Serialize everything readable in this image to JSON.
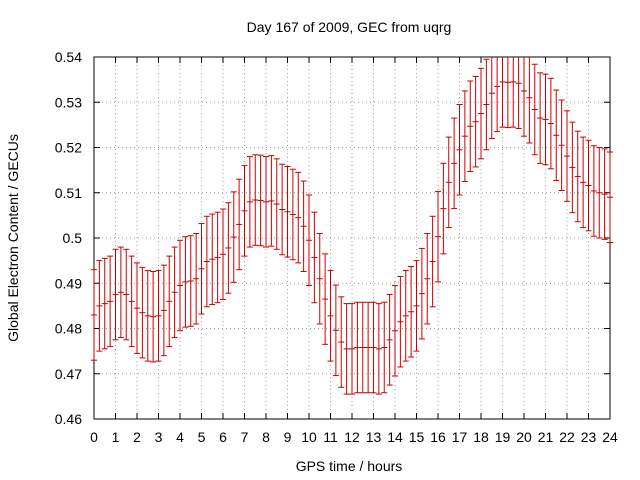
{
  "chart_data": {
    "type": "scatter",
    "title": "Day 167 of 2009, GEC from uqrg",
    "xlabel": "GPS time / hours",
    "ylabel": "Global Electron Content / GECUs",
    "xlim": [
      0,
      24
    ],
    "ylim": [
      0.46,
      0.54
    ],
    "xticks": [
      0,
      1,
      2,
      3,
      4,
      5,
      6,
      7,
      8,
      9,
      10,
      11,
      12,
      13,
      14,
      15,
      16,
      17,
      18,
      19,
      20,
      21,
      22,
      23,
      24
    ],
    "yticks": [
      0.46,
      0.47,
      0.48,
      0.49,
      0.5,
      0.51,
      0.52,
      0.53,
      0.54
    ],
    "xtick_labels": [
      "0",
      "1",
      "2",
      "3",
      "4",
      "5",
      "6",
      "7",
      "8",
      "9",
      "10",
      "11",
      "12",
      "13",
      "14",
      "15",
      "16",
      "17",
      "18",
      "19",
      "20",
      "21",
      "22",
      "23",
      "24"
    ],
    "ytick_labels": [
      "0.46",
      "0.47",
      "0.48",
      "0.49",
      "0.5",
      "0.51",
      "0.52",
      "0.53",
      "0.54"
    ],
    "grid": true,
    "error": 0.01,
    "series_color": "#cc0000",
    "grid_color": "#a0a0a0",
    "series": [
      {
        "name": "GEC",
        "x": [
          0,
          0.25,
          0.5,
          0.75,
          1,
          1.25,
          1.5,
          1.75,
          2,
          2.25,
          2.5,
          2.75,
          3,
          3.25,
          3.5,
          3.75,
          4,
          4.25,
          4.5,
          4.75,
          5,
          5.25,
          5.5,
          5.75,
          6,
          6.25,
          6.5,
          6.75,
          7,
          7.25,
          7.5,
          7.75,
          8,
          8.25,
          8.5,
          8.75,
          9,
          9.25,
          9.5,
          9.75,
          10,
          10.25,
          10.5,
          10.75,
          11,
          11.25,
          11.5,
          11.75,
          12,
          12.25,
          12.5,
          12.75,
          13,
          13.25,
          13.5,
          13.75,
          14,
          14.25,
          14.5,
          14.75,
          15,
          15.25,
          15.5,
          15.75,
          16,
          16.25,
          16.5,
          16.75,
          17,
          17.25,
          17.5,
          17.75,
          18,
          18.25,
          18.5,
          18.75,
          19,
          19.25,
          19.5,
          19.75,
          20,
          20.25,
          20.5,
          20.75,
          21,
          21.25,
          21.5,
          21.75,
          22,
          22.25,
          22.5,
          22.75,
          23,
          23.25,
          23.5,
          23.75,
          24
        ],
        "y": [
          0.483,
          0.485,
          0.4855,
          0.486,
          0.4875,
          0.488,
          0.4875,
          0.486,
          0.4845,
          0.4835,
          0.4828,
          0.4826,
          0.4828,
          0.484,
          0.486,
          0.488,
          0.4895,
          0.4903,
          0.4905,
          0.491,
          0.4932,
          0.4948,
          0.4953,
          0.4957,
          0.4964,
          0.4978,
          0.5002,
          0.503,
          0.506,
          0.508,
          0.5084,
          0.5083,
          0.508,
          0.5082,
          0.5075,
          0.5063,
          0.5058,
          0.5052,
          0.5045,
          0.5026,
          0.4995,
          0.4957,
          0.491,
          0.4865,
          0.4828,
          0.4796,
          0.477,
          0.4755,
          0.4755,
          0.4758,
          0.4758,
          0.4758,
          0.4758,
          0.4755,
          0.4758,
          0.4775,
          0.4795,
          0.4815,
          0.4828,
          0.4837,
          0.485,
          0.4877,
          0.491,
          0.4948,
          0.5003,
          0.5065,
          0.5123,
          0.5165,
          0.5195,
          0.5225,
          0.5247,
          0.5257,
          0.5275,
          0.5295,
          0.532,
          0.5335,
          0.5345,
          0.5344,
          0.5345,
          0.5342,
          0.5325,
          0.531,
          0.5284,
          0.5265,
          0.5262,
          0.5253,
          0.5227,
          0.5205,
          0.5181,
          0.5156,
          0.5136,
          0.5123,
          0.5116,
          0.5104,
          0.51,
          0.5097,
          0.509
        ]
      }
    ]
  }
}
